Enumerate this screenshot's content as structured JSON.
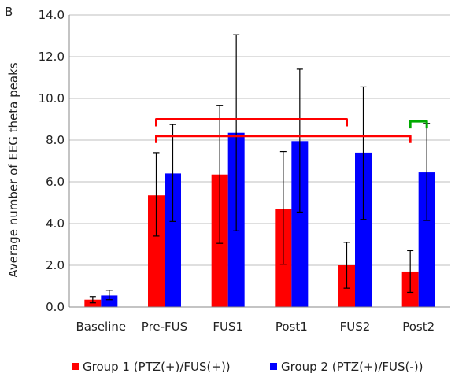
{
  "chart_data": {
    "type": "bar",
    "panel_label": "B",
    "title": "",
    "xlabel": "",
    "ylabel": "Average number of EEG theta peaks",
    "ylim": [
      0,
      14
    ],
    "y_ticks": [
      "0.0",
      "2.0",
      "4.0",
      "6.0",
      "8.0",
      "10.0",
      "12.0",
      "14.0"
    ],
    "grid": "horizontal",
    "legend_position": "bottom",
    "categories": [
      "Baseline",
      "Pre-FUS",
      "FUS1",
      "Post1",
      "FUS2",
      "Post2"
    ],
    "series": [
      {
        "name": "Group 1 (PTZ(+)/FUS(+))",
        "color": "#ff0000",
        "values": [
          0.35,
          5.35,
          6.35,
          4.7,
          2.0,
          1.7
        ],
        "error_low": [
          0.2,
          3.4,
          3.05,
          2.05,
          0.9,
          0.7
        ],
        "error_high": [
          0.5,
          7.4,
          9.65,
          7.45,
          3.1,
          2.7
        ]
      },
      {
        "name": "Group 2 (PTZ(+)/FUS(-))",
        "color": "#0000ff",
        "values": [
          0.55,
          6.4,
          8.35,
          7.95,
          7.4,
          6.45
        ],
        "error_low": [
          0.35,
          4.1,
          3.65,
          4.55,
          4.2,
          4.15
        ],
        "error_high": [
          0.8,
          8.75,
          13.05,
          11.4,
          10.55,
          8.8
        ]
      }
    ],
    "brackets": [
      {
        "from_category": 1,
        "from_series": 0,
        "to_category": 4,
        "to_series": 0,
        "y": 9.0,
        "color": "#ff0000"
      },
      {
        "from_category": 1,
        "from_series": 0,
        "to_category": 5,
        "to_series": 0,
        "y": 8.2,
        "color": "#ff0000"
      },
      {
        "from_category": 5,
        "from_series": 0,
        "to_category": 5,
        "to_series": 1,
        "y": 8.9,
        "color": "#00aa00"
      }
    ]
  }
}
